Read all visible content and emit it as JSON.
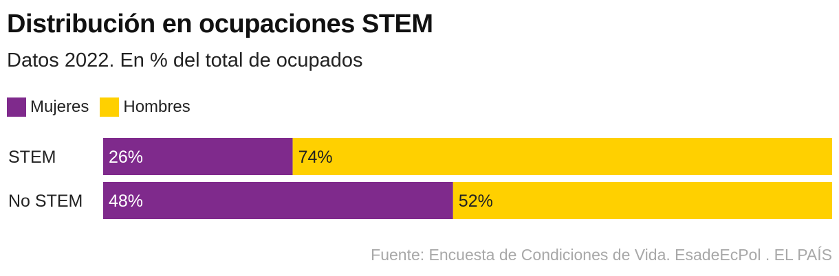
{
  "chart_data": {
    "type": "bar",
    "orientation": "horizontal",
    "stacked": true,
    "title": "Distribución en ocupaciones STEM",
    "subtitle": "Datos 2022. En % del total de ocupados",
    "categories": [
      "STEM",
      "No STEM"
    ],
    "series": [
      {
        "name": "Mujeres",
        "values": [
          26,
          48
        ],
        "labels": [
          "26%",
          "48%"
        ],
        "color": "#7f2a8c",
        "label_color": "#ffffff"
      },
      {
        "name": "Hombres",
        "values": [
          74,
          52
        ],
        "labels": [
          "74%",
          "52%"
        ],
        "color": "#ffd000",
        "label_color": "#222222"
      }
    ],
    "xlim": [
      0,
      100
    ],
    "legend_position": "top-left",
    "grid": false,
    "source": "Fuente: Encuesta de Condiciones de Vida. EsadeEcPol . EL PAÍS"
  }
}
